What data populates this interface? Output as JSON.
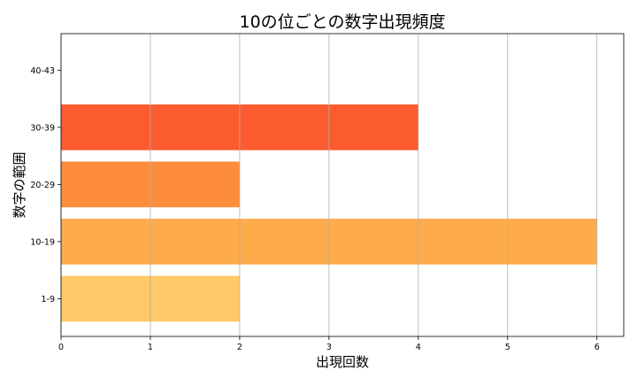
{
  "chart_data": {
    "type": "bar",
    "orientation": "horizontal",
    "title": "10の位ごとの数字出現頻度",
    "xlabel": "出現回数",
    "ylabel": "数字の範囲",
    "categories": [
      "1-9",
      "10-19",
      "20-29",
      "30-39",
      "40-43"
    ],
    "values": [
      2,
      6,
      2,
      4,
      0
    ],
    "colors": [
      "#fec966",
      "#fdab4b",
      "#fd8d3c",
      "#fc5b2f",
      "#e8301f"
    ],
    "xlim": [
      0,
      6.3
    ],
    "xticks": [
      0,
      1,
      2,
      3,
      4,
      5,
      6
    ],
    "grid": "x",
    "legend": "none"
  }
}
